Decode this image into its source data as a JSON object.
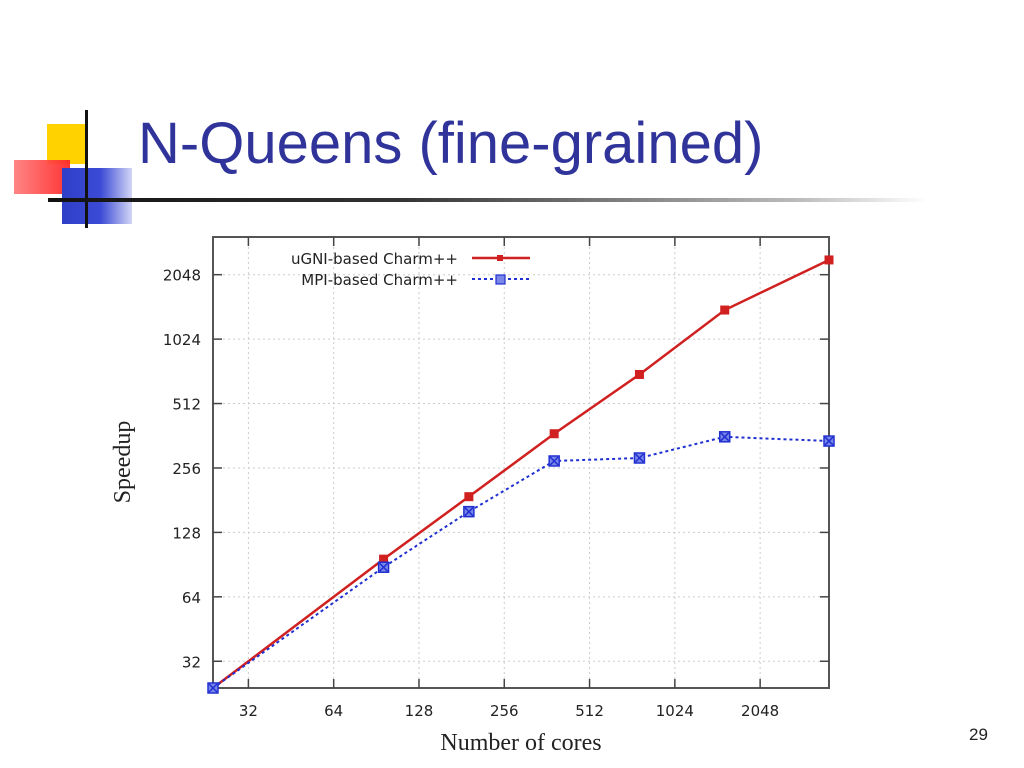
{
  "slide": {
    "title": "N-Queens (fine-grained)",
    "page_number": "29"
  },
  "colors": {
    "title": "#30349a",
    "ugni_series": "#d02020",
    "mpi_series": "#2030d0"
  },
  "chart_data": {
    "type": "line",
    "title": "",
    "xlabel": "Number of cores",
    "ylabel": "Speedup",
    "x_scale": "log2",
    "y_scale": "log2",
    "xlim": [
      24,
      3584
    ],
    "ylim": [
      24,
      3072
    ],
    "x_ticks": [
      32,
      64,
      128,
      256,
      512,
      1024,
      2048
    ],
    "y_ticks": [
      32,
      64,
      128,
      256,
      512,
      1024,
      2048
    ],
    "grid": true,
    "legend_position": "top-left",
    "series": [
      {
        "name": "uGNI-based Charm++",
        "color": "#d02020",
        "marker": "square",
        "line_style": "solid",
        "points": [
          [
            24,
            24
          ],
          [
            96,
            96
          ],
          [
            192,
            188
          ],
          [
            384,
            370
          ],
          [
            768,
            700
          ],
          [
            1536,
            1400
          ],
          [
            3584,
            2400
          ]
        ]
      },
      {
        "name": "MPI-based Charm++",
        "color": "#2030d0",
        "marker": "x-square",
        "line_style": "dotted",
        "points": [
          [
            24,
            24
          ],
          [
            96,
            88
          ],
          [
            192,
            160
          ],
          [
            384,
            276
          ],
          [
            768,
            285
          ],
          [
            1536,
            358
          ],
          [
            3584,
            342
          ]
        ]
      }
    ]
  }
}
